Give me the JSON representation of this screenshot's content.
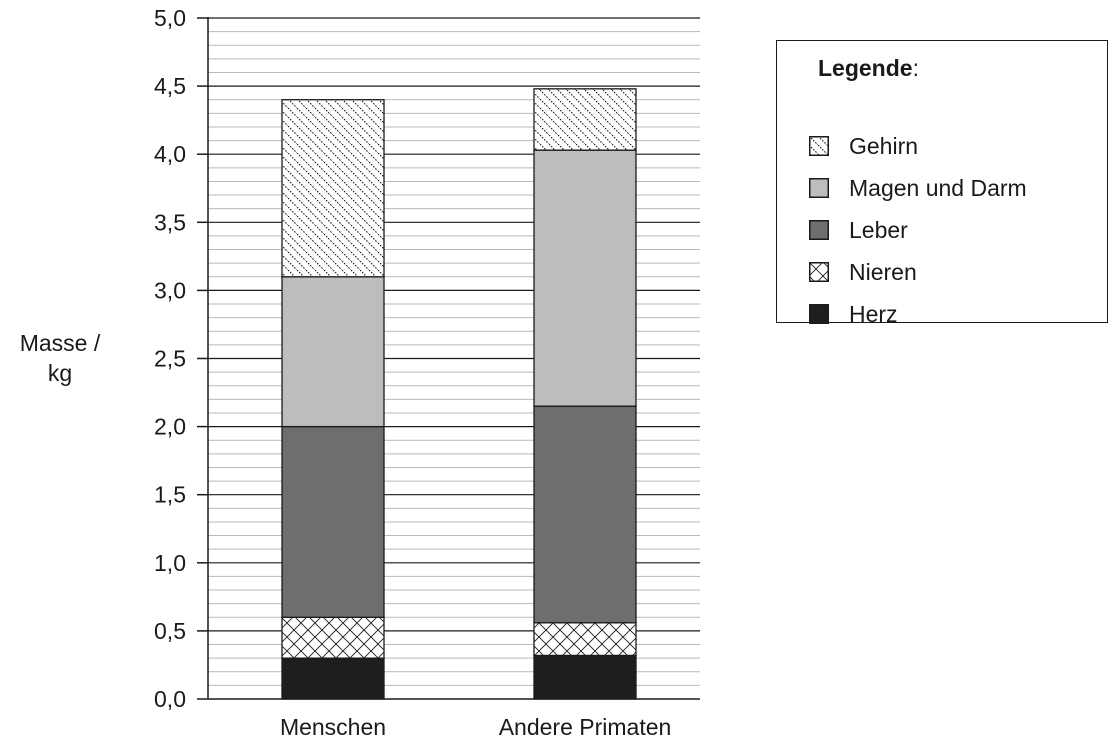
{
  "chart_data": {
    "type": "bar",
    "stacked": true,
    "categories": [
      "Menschen",
      "Andere Primaten"
    ],
    "series": [
      {
        "name": "Herz",
        "values": [
          0.3,
          0.32
        ],
        "color": "#1e1e1e",
        "pattern": "solid"
      },
      {
        "name": "Nieren",
        "values": [
          0.3,
          0.24
        ],
        "color": "#ffffff",
        "pattern": "crosshatch"
      },
      {
        "name": "Leber",
        "values": [
          1.4,
          1.59
        ],
        "color": "#6e6e6e",
        "pattern": "solid"
      },
      {
        "name": "Magen und Darm",
        "values": [
          1.1,
          1.88
        ],
        "color": "#bdbdbd",
        "pattern": "solid"
      },
      {
        "name": "Gehirn",
        "values": [
          1.3,
          0.45
        ],
        "color": "#ffffff",
        "pattern": "diagonal-dotted"
      }
    ],
    "ylabel_line1": "Masse /",
    "ylabel_line2": "kg",
    "ylim": [
      0,
      5
    ],
    "yticks": [
      "0,0",
      "0,5",
      "1,0",
      "1,5",
      "2,0",
      "2,5",
      "3,0",
      "3,5",
      "4,0",
      "4,5",
      "5,0"
    ],
    "grid": "horizontal",
    "legend_position": "top-right"
  },
  "legend": {
    "title": "Legende",
    "title_suffix": ":",
    "items": [
      {
        "label": "Gehirn",
        "pattern": "diagonal-dotted"
      },
      {
        "label": "Magen und Darm",
        "pattern": "light"
      },
      {
        "label": "Leber",
        "pattern": "dark"
      },
      {
        "label": "Nieren",
        "pattern": "crosshatch"
      },
      {
        "label": "Herz",
        "pattern": "solid"
      }
    ]
  }
}
